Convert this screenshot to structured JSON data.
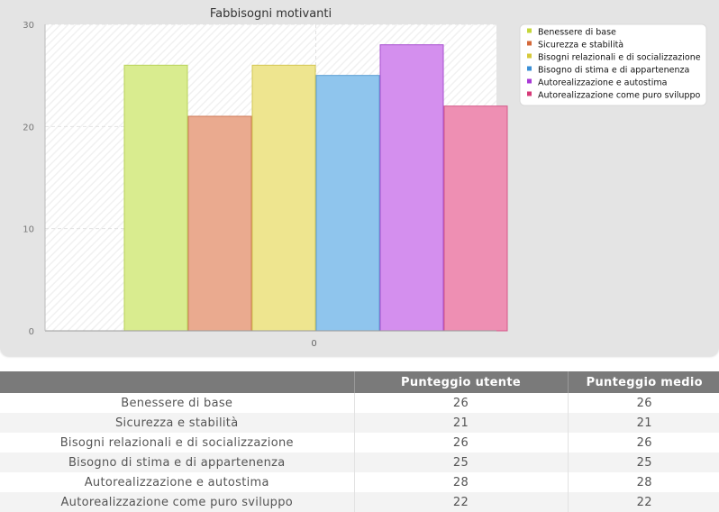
{
  "chart_data": {
    "type": "bar",
    "title": "Fabbisogni motivanti",
    "categories": [
      "0"
    ],
    "ylim": [
      0,
      30
    ],
    "yticks": [
      0,
      10,
      20,
      30
    ],
    "grid": true,
    "legend_position": "top-right",
    "series": [
      {
        "name": "Benessere di base",
        "values": [
          26
        ],
        "color": "#d9ec8f",
        "stroke": "#b9d25a",
        "legend_color": "#c4d63a"
      },
      {
        "name": "Sicurezza e stabilità",
        "values": [
          21
        ],
        "color": "#eaaa8f",
        "stroke": "#cf7a58",
        "legend_color": "#d4693a"
      },
      {
        "name": "Bisogni relazionali e di socializzazione",
        "values": [
          26
        ],
        "color": "#eee58f",
        "stroke": "#d3c653",
        "legend_color": "#d6c93a"
      },
      {
        "name": "Bisogno di stima e di appartenenza",
        "values": [
          25
        ],
        "color": "#8fc5ed",
        "stroke": "#5b9ed3",
        "legend_color": "#3a8fd6"
      },
      {
        "name": "Autorealizzazione e autostima",
        "values": [
          28
        ],
        "color": "#d48fee",
        "stroke": "#a74fcf",
        "legend_color": "#a83ad6"
      },
      {
        "name": "Autorealizzazione come puro sviluppo",
        "values": [
          22
        ],
        "color": "#ee8fb3",
        "stroke": "#d45a8a",
        "legend_color": "#d63a78"
      }
    ]
  },
  "table": {
    "headers": [
      "",
      "Punteggio utente",
      "Punteggio medio"
    ],
    "rows": [
      {
        "label": "Benessere di base",
        "user": "26",
        "avg": "26"
      },
      {
        "label": "Sicurezza e stabilità",
        "user": "21",
        "avg": "21"
      },
      {
        "label": "Bisogni relazionali e di socializzazione",
        "user": "26",
        "avg": "26"
      },
      {
        "label": "Bisogno di stima e di appartenenza",
        "user": "25",
        "avg": "25"
      },
      {
        "label": "Autorealizzazione e autostima",
        "user": "28",
        "avg": "28"
      },
      {
        "label": "Autorealizzazione come puro sviluppo",
        "user": "22",
        "avg": "22"
      }
    ]
  }
}
